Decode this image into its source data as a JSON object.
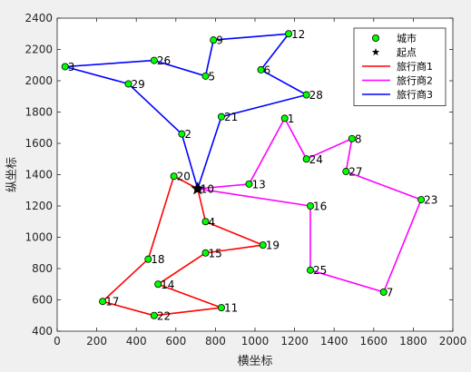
{
  "chart_data": {
    "type": "scatter",
    "xlabel": "横坐标",
    "ylabel": "纵坐标",
    "xlim": [
      0,
      2000
    ],
    "ylim": [
      400,
      2400
    ],
    "xticks": [
      0,
      200,
      400,
      600,
      800,
      1000,
      1200,
      1400,
      1600,
      1800,
      2000
    ],
    "yticks": [
      400,
      600,
      800,
      1000,
      1200,
      1400,
      1600,
      1800,
      2000,
      2200,
      2400
    ],
    "grid": false,
    "legend_position": "top-right",
    "start_point": {
      "x": 710,
      "y": 1310
    },
    "cities": [
      {
        "id": "1",
        "x": 1150,
        "y": 1760
      },
      {
        "id": "2",
        "x": 630,
        "y": 1660
      },
      {
        "id": "3",
        "x": 40,
        "y": 2090
      },
      {
        "id": "4",
        "x": 750,
        "y": 1100
      },
      {
        "id": "5",
        "x": 750,
        "y": 2030
      },
      {
        "id": "6",
        "x": 1030,
        "y": 2070
      },
      {
        "id": "7",
        "x": 1650,
        "y": 650
      },
      {
        "id": "8",
        "x": 1490,
        "y": 1630
      },
      {
        "id": "9",
        "x": 790,
        "y": 2260
      },
      {
        "id": "10",
        "x": 710,
        "y": 1310
      },
      {
        "id": "11",
        "x": 830,
        "y": 550
      },
      {
        "id": "12",
        "x": 1170,
        "y": 2300
      },
      {
        "id": "13",
        "x": 970,
        "y": 1340
      },
      {
        "id": "14",
        "x": 510,
        "y": 700
      },
      {
        "id": "15",
        "x": 750,
        "y": 900
      },
      {
        "id": "16",
        "x": 1280,
        "y": 1200
      },
      {
        "id": "17",
        "x": 230,
        "y": 590
      },
      {
        "id": "18",
        "x": 460,
        "y": 860
      },
      {
        "id": "19",
        "x": 1040,
        "y": 950
      },
      {
        "id": "20",
        "x": 590,
        "y": 1390
      },
      {
        "id": "21",
        "x": 830,
        "y": 1770
      },
      {
        "id": "22",
        "x": 490,
        "y": 500
      },
      {
        "id": "23",
        "x": 1840,
        "y": 1240
      },
      {
        "id": "24",
        "x": 1260,
        "y": 1500
      },
      {
        "id": "25",
        "x": 1280,
        "y": 790
      },
      {
        "id": "26",
        "x": 490,
        "y": 2130
      },
      {
        "id": "27",
        "x": 1460,
        "y": 1420
      },
      {
        "id": "28",
        "x": 1260,
        "y": 1910
      },
      {
        "id": "29",
        "x": 360,
        "y": 1980
      }
    ],
    "routes": [
      {
        "name": "旅行商1",
        "color": "#ff0000",
        "path": [
          "10",
          "20",
          "18",
          "17",
          "22",
          "11",
          "14",
          "15",
          "19",
          "4",
          "10"
        ]
      },
      {
        "name": "旅行商2",
        "color": "#ff00ff",
        "path": [
          "10",
          "13",
          "1",
          "24",
          "8",
          "27",
          "23",
          "7",
          "25",
          "16",
          "10"
        ]
      },
      {
        "name": "旅行商3",
        "color": "#0000ff",
        "path": [
          "10",
          "2",
          "29",
          "3",
          "26",
          "5",
          "9",
          "12",
          "6",
          "28",
          "21",
          "10"
        ]
      }
    ],
    "legend": [
      {
        "label": "城市",
        "kind": "city-marker"
      },
      {
        "label": "起点",
        "kind": "star-marker"
      },
      {
        "label": "旅行商1",
        "kind": "line",
        "color": "#ff0000"
      },
      {
        "label": "旅行商2",
        "kind": "line",
        "color": "#ff00ff"
      },
      {
        "label": "旅行商3",
        "kind": "line",
        "color": "#0000ff"
      }
    ],
    "marker_colors": {
      "city_fill": "#00ff00",
      "city_edge": "#000000",
      "star": "#000000"
    }
  }
}
